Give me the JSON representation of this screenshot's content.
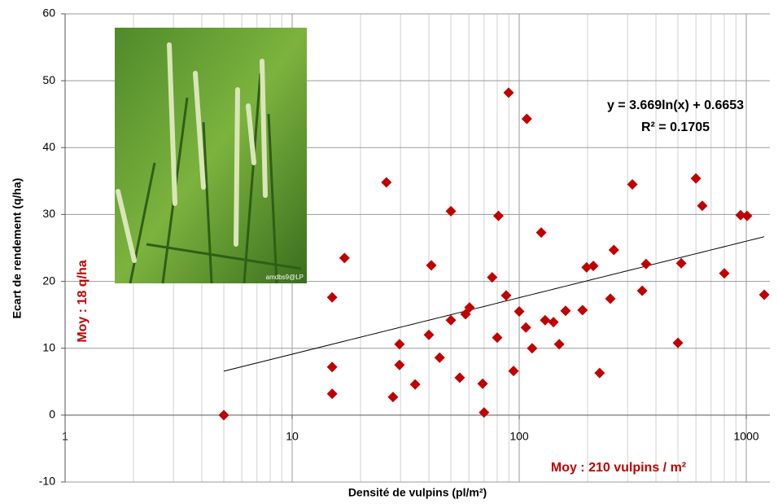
{
  "chart_data": {
    "type": "scatter",
    "x_label": "Densité de vulpins (pl/m²)",
    "y_label": "Ecart de rendement (q/ha)",
    "x_log": true,
    "xlim": [
      1,
      1270
    ],
    "xticks": [
      1,
      10,
      100,
      1000
    ],
    "ylim": [
      -10,
      60
    ],
    "yticks": [
      -10,
      0,
      10,
      20,
      30,
      40,
      50,
      60
    ],
    "grid": true,
    "minor_grid": true,
    "color": "#c00000",
    "x": [
      5,
      15,
      15,
      15,
      17,
      26,
      27.8,
      29.7,
      29.7,
      34.8,
      40,
      41,
      44.6,
      50,
      50,
      54.7,
      58,
      60.4,
      69,
      70,
      76,
      80,
      81,
      87.6,
      89.8,
      94.4,
      100,
      107,
      108,
      114,
      125,
      130,
      141.5,
      150,
      160,
      190,
      198,
      212,
      226,
      252,
      261,
      315,
      348,
      362,
      500,
      517,
      600,
      640,
      800,
      944,
      1008,
      1200
    ],
    "values": [
      0,
      3.2,
      7.2,
      17.6,
      23.5,
      34.8,
      2.7,
      10.6,
      7.5,
      4.6,
      12.0,
      22.4,
      8.6,
      14.2,
      30.5,
      5.6,
      15.1,
      16.1,
      4.7,
      0.4,
      20.6,
      11.6,
      29.8,
      17.9,
      48.2,
      6.6,
      15.5,
      13.1,
      44.3,
      10.0,
      27.3,
      14.2,
      13.9,
      10.6,
      15.6,
      15.7,
      22.1,
      22.3,
      6.3,
      17.4,
      24.7,
      34.5,
      18.6,
      22.6,
      10.8,
      22.7,
      35.4,
      31.3,
      21.2,
      29.9,
      29.8,
      18.0
    ],
    "trendline": {
      "slope": 3.669,
      "intercept": 0.6653,
      "equation_label": "y = 3.669ln(x) + 0.6653",
      "r_squared": 0.1705,
      "r_squared_label": "R² = 0.1705"
    },
    "annotations": {
      "y_mean": "Moy : 18 q/ha",
      "x_mean": "Moy : 210 vulpins / m²"
    },
    "image_credit": "amdbs9@LP"
  }
}
